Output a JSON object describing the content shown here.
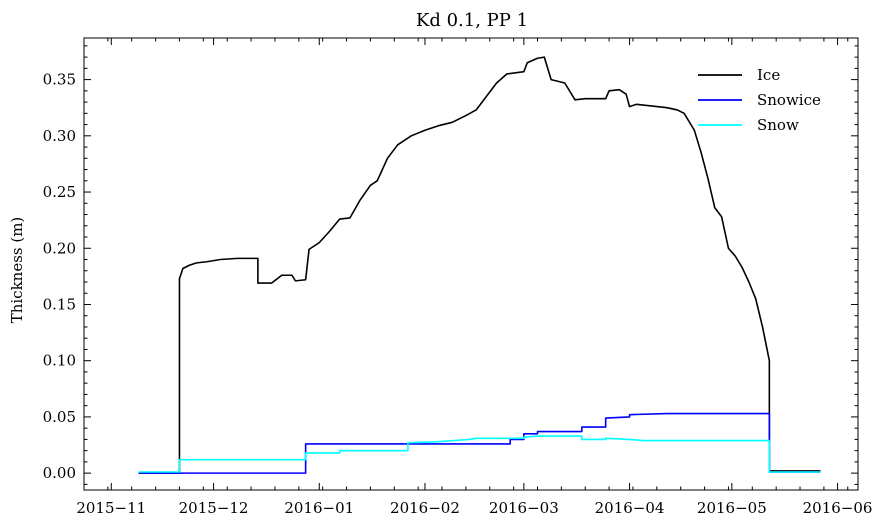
{
  "chart_data": {
    "type": "line",
    "title": "Kd 0.1, PP 1",
    "xlabel": "",
    "ylabel": "Thickness (m)",
    "x_axis_type": "date",
    "xlim": [
      "2015-10-24",
      "2016-06-07"
    ],
    "ylim": [
      -0.015,
      0.387
    ],
    "x_ticks": [
      "2015-11-01",
      "2015-12-01",
      "2016-01-01",
      "2016-02-01",
      "2016-03-01",
      "2016-04-01",
      "2016-05-01",
      "2016-06-01"
    ],
    "x_tick_labels": [
      "2015−11",
      "2015−12",
      "2016−01",
      "2016−02",
      "2016−03",
      "2016−04",
      "2016−05",
      "2016−06"
    ],
    "y_ticks": [
      0.0,
      0.05,
      0.1,
      0.15,
      0.2,
      0.25,
      0.3,
      0.35
    ],
    "y_tick_labels": [
      "0.00",
      "0.05",
      "0.10",
      "0.15",
      "0.20",
      "0.25",
      "0.30",
      "0.35"
    ],
    "grid": false,
    "legend_position": "top-right",
    "series": [
      {
        "name": "Ice",
        "color": "#000000",
        "points": [
          [
            "2015-11-09",
            0.0
          ],
          [
            "2015-11-21",
            0.0
          ],
          [
            "2015-11-21",
            0.173
          ],
          [
            "2015-11-22",
            0.182
          ],
          [
            "2015-11-24",
            0.185
          ],
          [
            "2015-11-26",
            0.187
          ],
          [
            "2015-11-29",
            0.188
          ],
          [
            "2015-12-03",
            0.19
          ],
          [
            "2015-12-08",
            0.191
          ],
          [
            "2015-12-14",
            0.191
          ],
          [
            "2015-12-14",
            0.169
          ],
          [
            "2015-12-18",
            0.169
          ],
          [
            "2015-12-21",
            0.176
          ],
          [
            "2015-12-24",
            0.176
          ],
          [
            "2015-12-25",
            0.171
          ],
          [
            "2015-12-28",
            0.172
          ],
          [
            "2015-12-29",
            0.199
          ],
          [
            "2016-01-01",
            0.205
          ],
          [
            "2016-01-04",
            0.215
          ],
          [
            "2016-01-07",
            0.226
          ],
          [
            "2016-01-10",
            0.227
          ],
          [
            "2016-01-13",
            0.243
          ],
          [
            "2016-01-16",
            0.256
          ],
          [
            "2016-01-18",
            0.26
          ],
          [
            "2016-01-21",
            0.28
          ],
          [
            "2016-01-24",
            0.292
          ],
          [
            "2016-01-28",
            0.3
          ],
          [
            "2016-02-01",
            0.305
          ],
          [
            "2016-02-05",
            0.309
          ],
          [
            "2016-02-09",
            0.312
          ],
          [
            "2016-02-13",
            0.318
          ],
          [
            "2016-02-16",
            0.323
          ],
          [
            "2016-02-19",
            0.335
          ],
          [
            "2016-02-22",
            0.347
          ],
          [
            "2016-02-25",
            0.355
          ],
          [
            "2016-03-01",
            0.357
          ],
          [
            "2016-03-02",
            0.365
          ],
          [
            "2016-03-05",
            0.369
          ],
          [
            "2016-03-07",
            0.37
          ],
          [
            "2016-03-09",
            0.35
          ],
          [
            "2016-03-13",
            0.347
          ],
          [
            "2016-03-16",
            0.332
          ],
          [
            "2016-03-19",
            0.333
          ],
          [
            "2016-03-25",
            0.333
          ],
          [
            "2016-03-26",
            0.34
          ],
          [
            "2016-03-29",
            0.341
          ],
          [
            "2016-03-31",
            0.337
          ],
          [
            "2016-04-01",
            0.326
          ],
          [
            "2016-04-03",
            0.328
          ],
          [
            "2016-04-09",
            0.326
          ],
          [
            "2016-04-12",
            0.325
          ],
          [
            "2016-04-15",
            0.323
          ],
          [
            "2016-04-17",
            0.32
          ],
          [
            "2016-04-20",
            0.305
          ],
          [
            "2016-04-22",
            0.285
          ],
          [
            "2016-04-24",
            0.262
          ],
          [
            "2016-04-26",
            0.236
          ],
          [
            "2016-04-28",
            0.228
          ],
          [
            "2016-04-30",
            0.2
          ],
          [
            "2016-05-02",
            0.193
          ],
          [
            "2016-05-04",
            0.183
          ],
          [
            "2016-05-06",
            0.17
          ],
          [
            "2016-05-08",
            0.155
          ],
          [
            "2016-05-10",
            0.13
          ],
          [
            "2016-05-12",
            0.1
          ],
          [
            "2016-05-12",
            0.002
          ],
          [
            "2016-05-27",
            0.002
          ]
        ]
      },
      {
        "name": "Snowice",
        "color": "#0000ff",
        "points": [
          [
            "2015-11-09",
            0.0
          ],
          [
            "2015-12-28",
            0.0
          ],
          [
            "2015-12-28",
            0.026
          ],
          [
            "2016-02-26",
            0.026
          ],
          [
            "2016-02-26",
            0.03
          ],
          [
            "2016-03-01",
            0.03
          ],
          [
            "2016-03-01",
            0.035
          ],
          [
            "2016-03-05",
            0.035
          ],
          [
            "2016-03-05",
            0.037
          ],
          [
            "2016-03-18",
            0.037
          ],
          [
            "2016-03-18",
            0.041
          ],
          [
            "2016-03-25",
            0.041
          ],
          [
            "2016-03-25",
            0.049
          ],
          [
            "2016-04-01",
            0.05
          ],
          [
            "2016-04-01",
            0.052
          ],
          [
            "2016-04-12",
            0.053
          ],
          [
            "2016-05-12",
            0.053
          ],
          [
            "2016-05-12",
            0.001
          ],
          [
            "2016-05-27",
            0.001
          ]
        ]
      },
      {
        "name": "Snow",
        "color": "#00ffff",
        "points": [
          [
            "2015-11-09",
            0.001
          ],
          [
            "2015-11-21",
            0.001
          ],
          [
            "2015-11-21",
            0.012
          ],
          [
            "2015-12-28",
            0.012
          ],
          [
            "2015-12-28",
            0.018
          ],
          [
            "2016-01-07",
            0.018
          ],
          [
            "2016-01-07",
            0.02
          ],
          [
            "2016-01-27",
            0.02
          ],
          [
            "2016-01-27",
            0.027
          ],
          [
            "2016-02-05",
            0.028
          ],
          [
            "2016-02-14",
            0.03
          ],
          [
            "2016-02-16",
            0.031
          ],
          [
            "2016-03-01",
            0.031
          ],
          [
            "2016-03-01",
            0.032
          ],
          [
            "2016-03-05",
            0.033
          ],
          [
            "2016-03-18",
            0.033
          ],
          [
            "2016-03-18",
            0.03
          ],
          [
            "2016-03-25",
            0.03
          ],
          [
            "2016-03-25",
            0.031
          ],
          [
            "2016-04-01",
            0.03
          ],
          [
            "2016-04-05",
            0.029
          ],
          [
            "2016-05-12",
            0.029
          ],
          [
            "2016-05-12",
            0.001
          ],
          [
            "2016-05-27",
            0.001
          ]
        ]
      }
    ]
  }
}
